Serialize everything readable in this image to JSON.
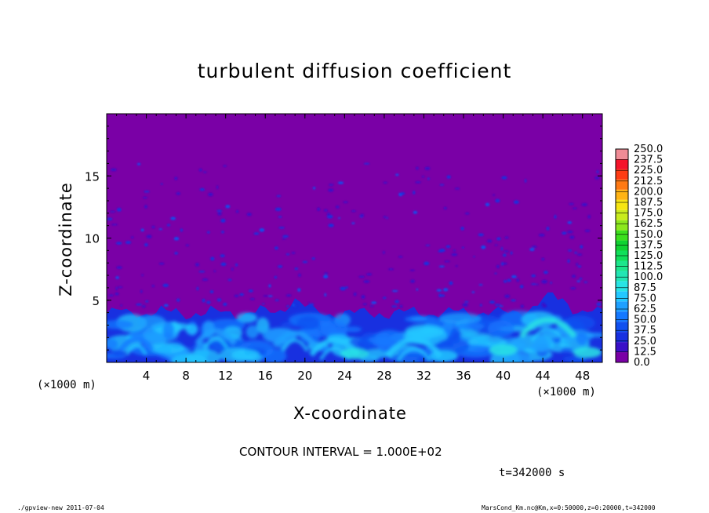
{
  "chart_data": {
    "type": "heatmap",
    "title": "turbulent diffusion coefficient",
    "xlabel": "X-coordinate",
    "ylabel": "Z-coordinate",
    "x_unit": "(×1000 m)",
    "x_unit_right": "(×1000 m)",
    "xlim": [
      0,
      50
    ],
    "ylim": [
      0,
      20
    ],
    "x_ticks": [
      "4",
      "8",
      "12",
      "16",
      "20",
      "24",
      "28",
      "32",
      "36",
      "40",
      "44",
      "48"
    ],
    "y_ticks": [
      "5",
      "10",
      "15"
    ],
    "contour_interval_text": "CONTOUR INTERVAL = 1.000E+02",
    "time_text": "t=342000 s",
    "colorbar": {
      "levels": [
        "0.0",
        "12.5",
        "25.0",
        "37.5",
        "50.0",
        "62.5",
        "75.0",
        "87.5",
        "100.0",
        "112.5",
        "125.0",
        "137.5",
        "150.0",
        "162.5",
        "175.0",
        "187.5",
        "200.0",
        "212.5",
        "225.0",
        "237.5",
        "250.0"
      ],
      "colors": [
        "#7a00a6",
        "#3a10c8",
        "#1830e0",
        "#1050f0",
        "#1478ff",
        "#1ea0ff",
        "#22c8ff",
        "#28e4e4",
        "#22e6b4",
        "#1ce68c",
        "#10e05a",
        "#10d232",
        "#3ce01e",
        "#8ce81e",
        "#c8ec1e",
        "#f6e612",
        "#ffb414",
        "#ff7a14",
        "#ff3c14",
        "#f5142a",
        "#f08c96"
      ]
    },
    "background_value": "0.0",
    "field_notes": "Turbulent layer (values ~12.5-100) below z≈5 km; above, value ≈0 with sparse small patches."
  },
  "footer": {
    "left": "./gpview-new  2011-07-04",
    "right": "MarsCond_Km.nc@Km,x=0:50000,z=0:20000,t=342000"
  }
}
